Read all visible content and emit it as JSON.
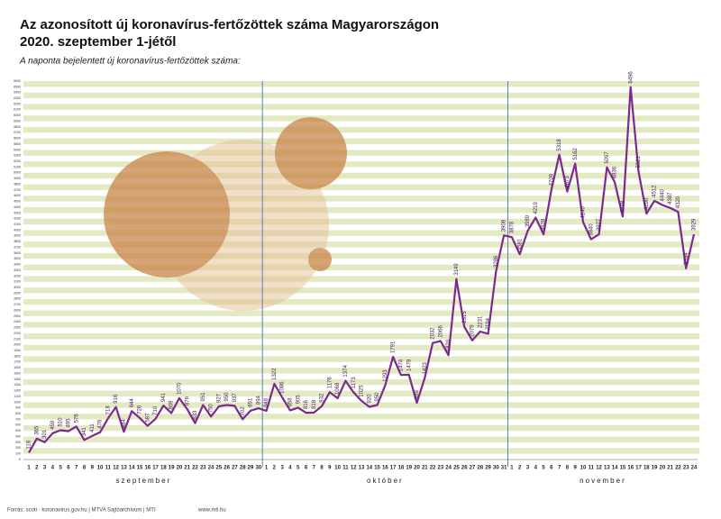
{
  "chart_data": {
    "type": "line",
    "title": "Az azonosított új koronavírus-fertőzöttek száma Magyarországon",
    "subtitle": "2020. szeptember 1-jétől",
    "annotation": "A naponta bejelentett új koronavírus-fertőzöttek száma:",
    "footer": "Forrás: scoti · koronavirus.gov.hu | MTVA Sajtóarchívum | MTI",
    "footer_url": "www.mti.hu",
    "months": [
      "szeptember",
      "október",
      "november"
    ],
    "categories": [
      "1",
      "2",
      "3",
      "4",
      "5",
      "6",
      "7",
      "8",
      "9",
      "10",
      "11",
      "12",
      "13",
      "14",
      "15",
      "16",
      "17",
      "18",
      "19",
      "20",
      "21",
      "22",
      "23",
      "24",
      "25",
      "26",
      "27",
      "28",
      "29",
      "30",
      "1",
      "2",
      "3",
      "4",
      "5",
      "6",
      "7",
      "8",
      "9",
      "10",
      "11",
      "12",
      "13",
      "14",
      "15",
      "16",
      "17",
      "18",
      "19",
      "20",
      "21",
      "22",
      "23",
      "24",
      "25",
      "26",
      "27",
      "28",
      "29",
      "30",
      "31",
      "1",
      "2",
      "3",
      "4",
      "5",
      "6",
      "7",
      "8",
      "9",
      "10",
      "11",
      "12",
      "13",
      "14",
      "15",
      "16",
      "17",
      "18",
      "19",
      "20",
      "21",
      "22",
      "23",
      "24"
    ],
    "series": [
      {
        "color": "#7b2a8e",
        "values": [
          118,
          365,
          301,
          459,
          510,
          495,
          576,
          341,
          411,
          476,
          718,
          916,
          484,
          844,
          726,
          587,
          710,
          941,
          809,
          1070,
          879,
          633,
          951,
          750,
          927,
          950,
          937,
          702,
          851,
          894,
          848,
          1322,
          1086,
          858,
          905,
          816,
          818,
          932,
          1176,
          1068,
          1374,
          1173,
          1025,
          920,
          950,
          1293,
          1791,
          1474,
          1478,
          989,
          1423,
          2032,
          2066,
          1820,
          3149,
          2315,
          2079,
          2231,
          2194,
          3286,
          3908,
          3878,
          3581,
          3989,
          4219,
          3928,
          4709,
          5318,
          4673,
          5162,
          4140,
          3840,
          3927,
          5097,
          4836,
          4238,
          6496,
          5021,
          4290,
          4512,
          4440,
          4387,
          4320,
          3334,
          3929
        ]
      }
    ],
    "ylim": [
      0,
      6600
    ],
    "yticks": [
      0,
      100,
      200,
      300,
      400,
      500,
      600,
      700,
      800,
      900,
      1000,
      1100,
      1200,
      1300,
      1400,
      1500,
      1600,
      1700,
      1800,
      1900,
      2000,
      2100,
      2200,
      2300,
      2400,
      2500,
      2600,
      2700,
      2800,
      2900,
      3000,
      3100,
      3200,
      3300,
      3400,
      3500,
      3600,
      3700,
      3800,
      3900,
      4000,
      4100,
      4200,
      4300,
      4400,
      4500,
      4600,
      4700,
      4800,
      4900,
      5000,
      5100,
      5200,
      5300,
      5400,
      5500,
      5600,
      5700,
      5800,
      5900,
      6000,
      6100,
      6200,
      6300,
      6400,
      6500,
      6600
    ],
    "grid": true,
    "stripe_color": "#e3eac3"
  }
}
